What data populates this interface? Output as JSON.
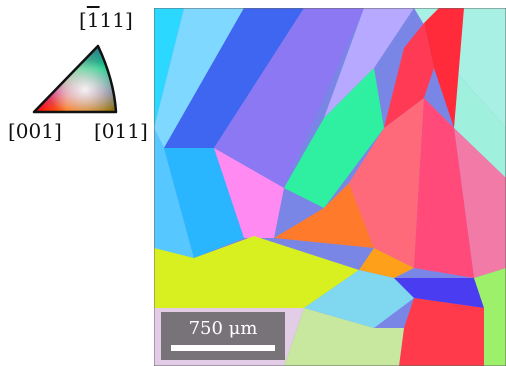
{
  "legend": {
    "top_label_pre": "[",
    "top_label_bar": "1",
    "top_label_post": "11]",
    "left_label": "[001]",
    "right_label": "[011]"
  },
  "scale_bar": {
    "value": "750",
    "unit": "μm"
  },
  "colors": {
    "background": "#ffffff",
    "scale_bar_box": "#5a5a5a",
    "scale_bar_line": "#ffffff",
    "legend_red": "#ff0000",
    "legend_green": "#00ff00",
    "legend_blue": "#0000ff"
  },
  "icons": {
    "ipf_key": "ipf-color-key-icon",
    "ebsd_map": "ebsd-orientation-map-icon"
  }
}
